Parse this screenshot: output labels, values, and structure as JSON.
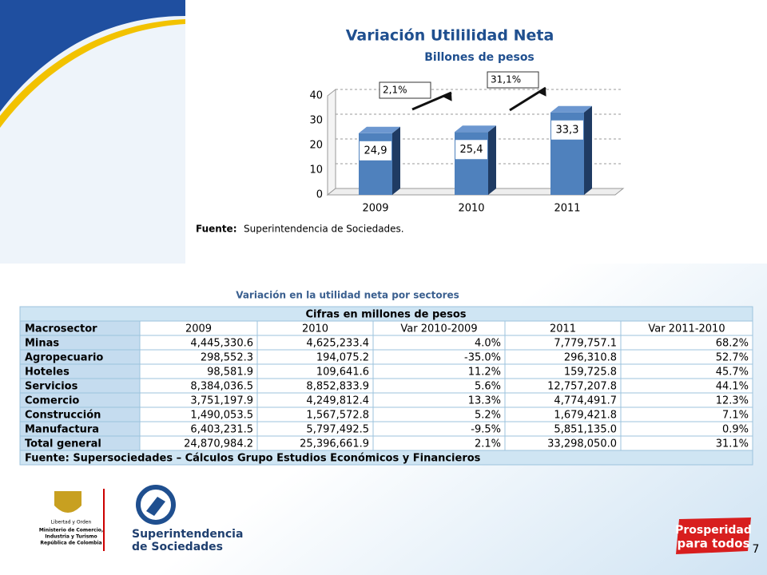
{
  "chart_data": {
    "type": "bar",
    "title": "Variación Utililidad Neta",
    "subtitle": "Billones de pesos",
    "categories": [
      "2009",
      "2010",
      "2011"
    ],
    "values": [
      24.9,
      25.4,
      33.3
    ],
    "value_labels": [
      "24,9",
      "25,4",
      "33,3"
    ],
    "color": "#4f81bd",
    "ylim": [
      0,
      40
    ],
    "yticks": [
      0,
      10,
      20,
      30,
      40
    ],
    "grid": true,
    "annotations": [
      "2,1%",
      "31,1%"
    ],
    "source_label": "Fuente:",
    "source": "Superintendencia de Sociedades."
  },
  "table": {
    "title": "Variación en la utilidad neta por sectores",
    "caption": "Cifras en millones de pesos",
    "columns": [
      "Macrosector",
      "2009",
      "2010",
      "Var 2010-2009",
      "2011",
      "Var 2011-2010"
    ],
    "rows": [
      [
        "Minas",
        "4,445,330.6",
        "4,625,233.4",
        "4.0%",
        "7,779,757.1",
        "68.2%"
      ],
      [
        "Agropecuario",
        "298,552.3",
        "194,075.2",
        "-35.0%",
        "296,310.8",
        "52.7%"
      ],
      [
        "Hoteles",
        "98,581.9",
        "109,641.6",
        "11.2%",
        "159,725.8",
        "45.7%"
      ],
      [
        "Servicios",
        "8,384,036.5",
        "8,852,833.9",
        "5.6%",
        "12,757,207.8",
        "44.1%"
      ],
      [
        "Comercio",
        "3,751,197.9",
        "4,249,812.4",
        "13.3%",
        "4,774,491.7",
        "12.3%"
      ],
      [
        "Construcción",
        "1,490,053.5",
        "1,567,572.8",
        "5.2%",
        "1,679,421.8",
        "7.1%"
      ],
      [
        "Manufactura",
        "6,403,231.5",
        "5,797,492.5",
        "-9.5%",
        "5,851,135.0",
        "0.9%"
      ],
      [
        "Total general",
        "24,870,984.2",
        "25,396,661.9",
        "2.1%",
        "33,298,050.0",
        "31.1%"
      ]
    ],
    "footer": "Fuente: Supersociedades – Cálculos Grupo Estudios Económicos y Financieros"
  },
  "logos": {
    "motto": "Libertad y Orden",
    "ministry": [
      "Ministerio de Comercio,",
      "Industria y Turismo",
      "República de Colombia"
    ],
    "agency": [
      "Superintendencia",
      "de Sociedades"
    ],
    "slogan": [
      "Prosperidad",
      "para todos"
    ]
  },
  "page_number": "7"
}
